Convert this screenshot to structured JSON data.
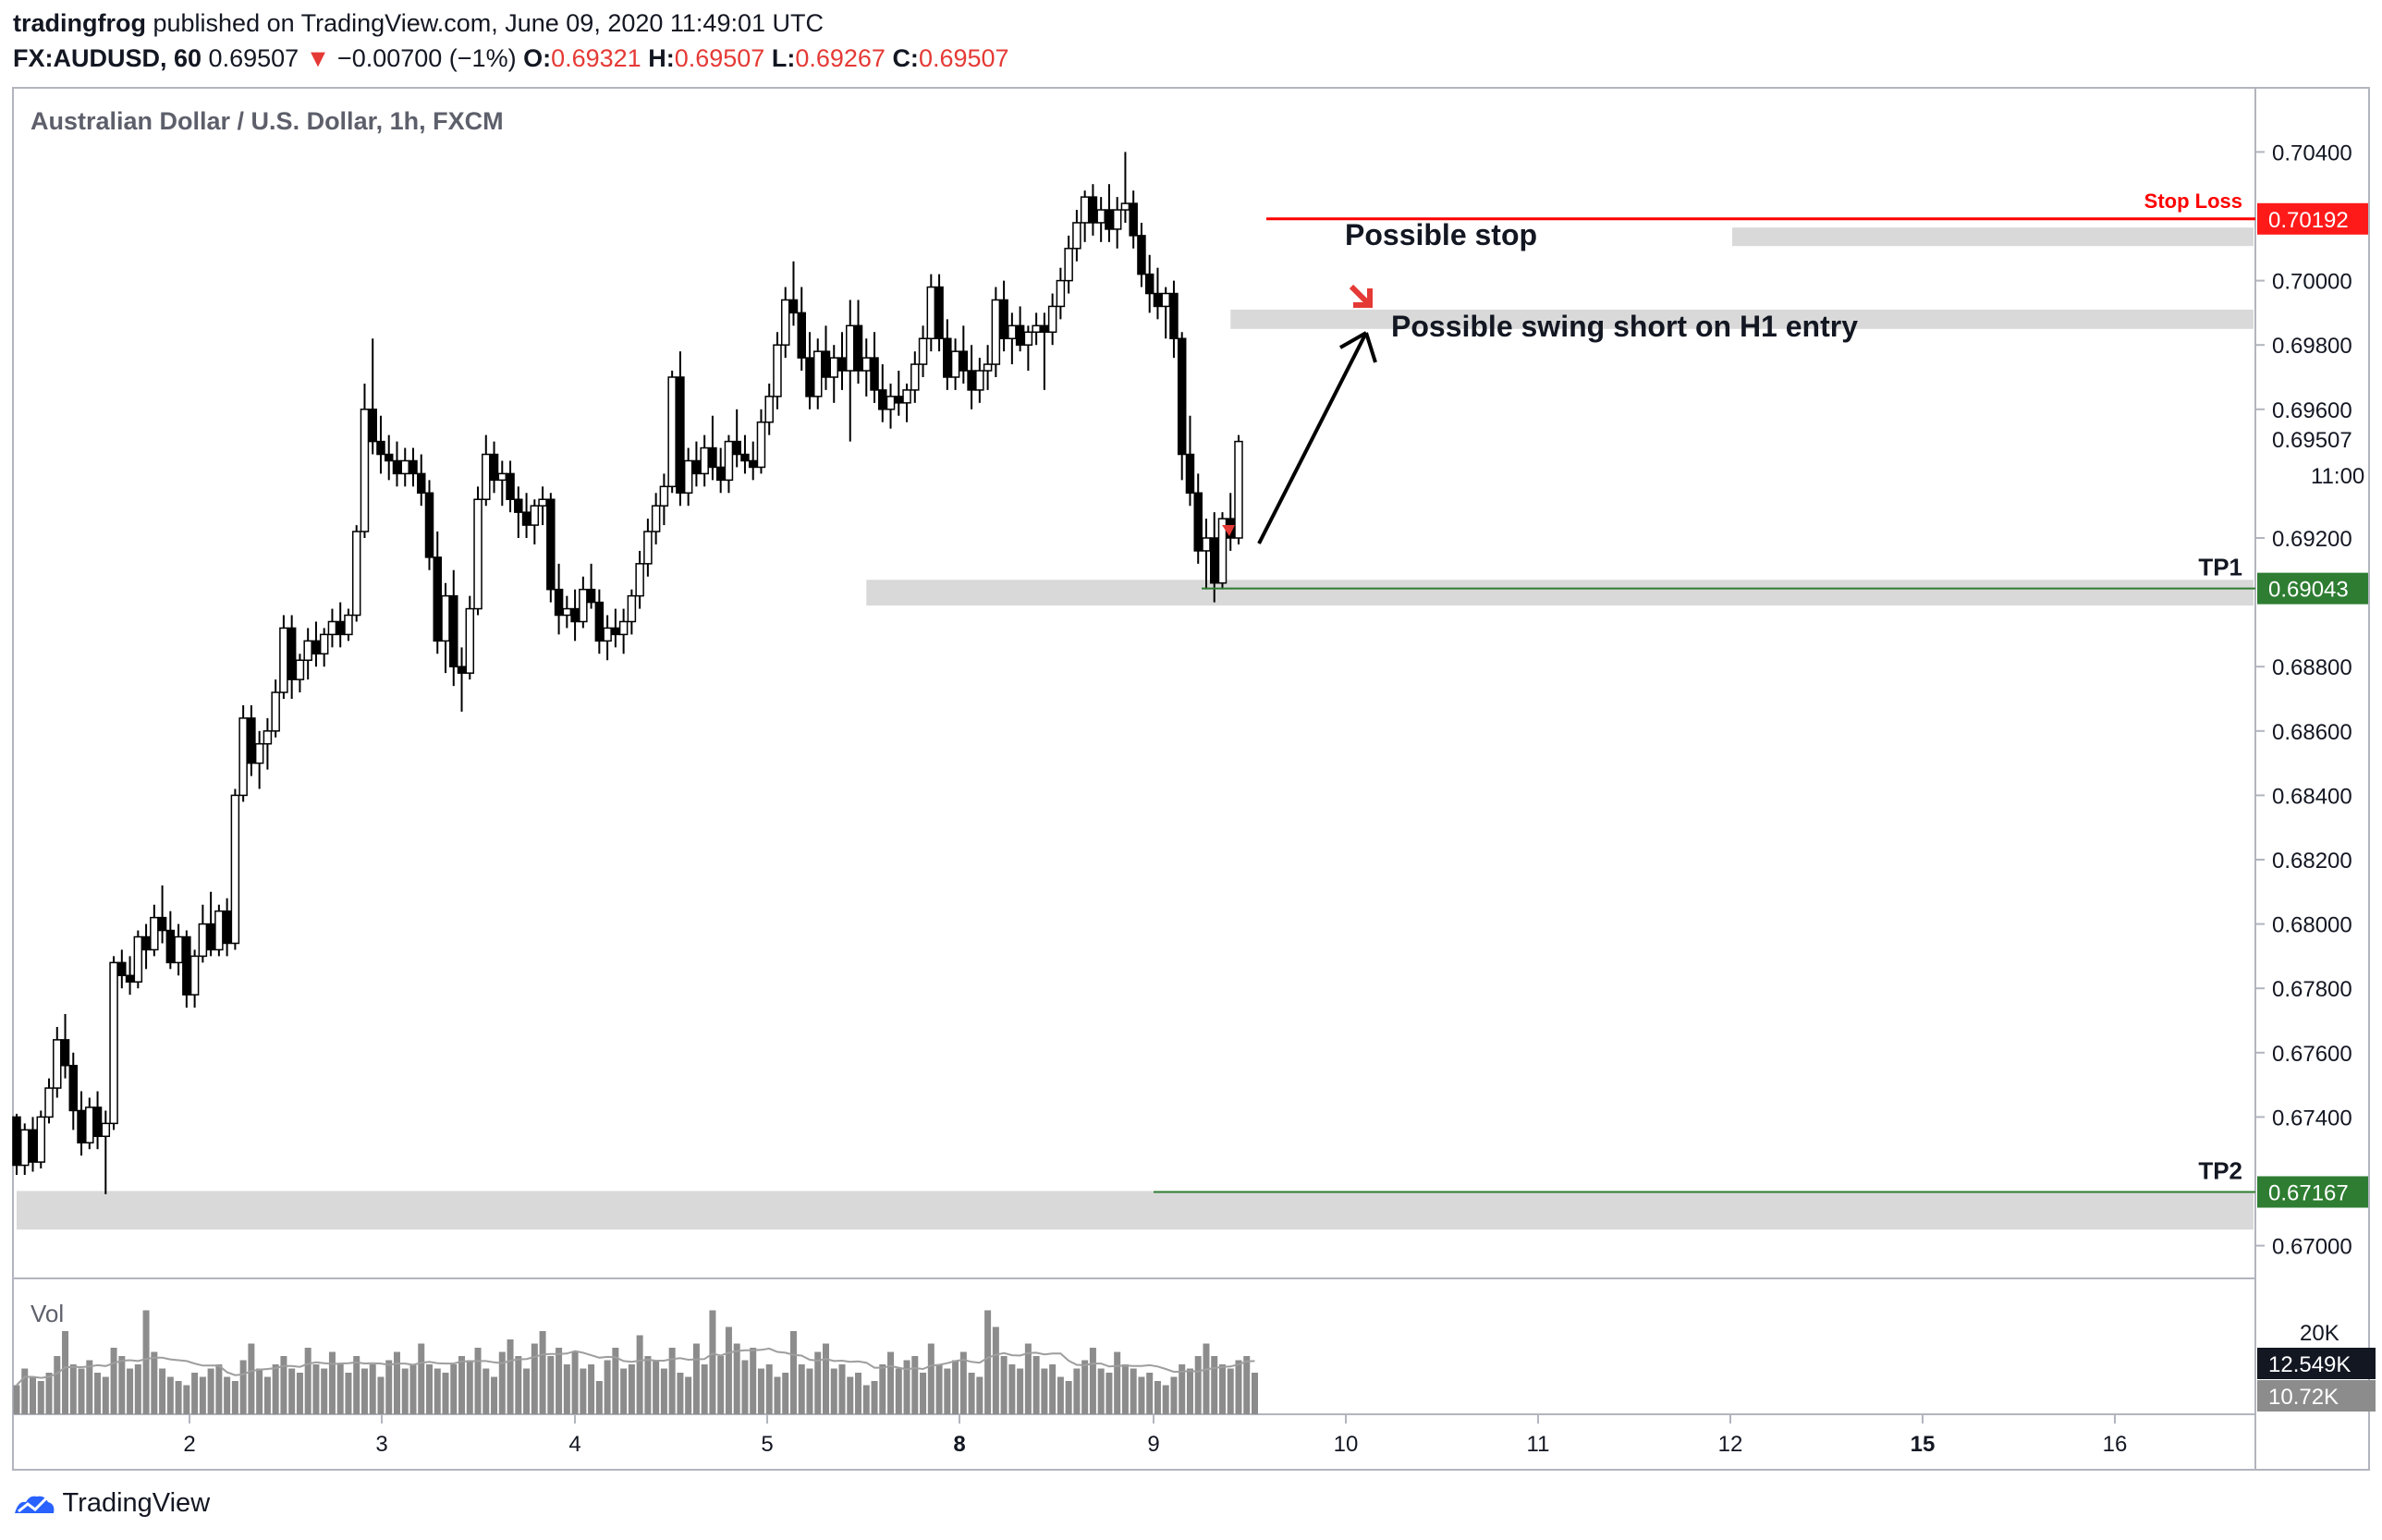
{
  "header": {
    "author": "tradingfrog",
    "published_text": "published on TradingView.com, June 09, 2020 11:49:01 UTC",
    "symbol_interval": "FX:AUDUSD, 60",
    "last_price": "0.69507",
    "change_arrow": "▼",
    "change": "−0.00700 (−1%)",
    "o_label": "O:",
    "o_value": "0.69321",
    "h_label": "H:",
    "h_value": "0.69507",
    "l_label": "L:",
    "l_value": "0.69267",
    "c_label": "C:",
    "c_value": "0.69507"
  },
  "footer": {
    "brand": "TradingView"
  },
  "colors": {
    "up_candle": "#ffffff",
    "down_candle": "#000000",
    "candle_outline": "#000000",
    "zone": "#d9d9d9",
    "stop_line": "#ff0000",
    "tp_line": "#2e7d32",
    "tp_badge": "#2e7d32",
    "stop_badge": "#ff1a1a",
    "volume_bar": "#8c8c8c",
    "price_badge": "#131722",
    "volume_badge": "#8c8c8c",
    "grid_border": "#b2b5be"
  },
  "chart_data": {
    "type": "candlestick",
    "title": "Australian Dollar / U.S. Dollar, 1h, FXCM",
    "volume_label": "Vol",
    "y_range": [
      0.6695,
      0.7045
    ],
    "y_ticks": [
      "0.70400",
      "0.70000",
      "0.69800",
      "0.69600",
      "0.69200",
      "0.68800",
      "0.68600",
      "0.68400",
      "0.68200",
      "0.68000",
      "0.67800",
      "0.67600",
      "0.67400",
      "0.67000"
    ],
    "x_ticks": [
      "2",
      "3",
      "4",
      "5",
      "8",
      "9",
      "10",
      "11",
      "12",
      "15",
      "16"
    ],
    "current_price_label": "0.69507",
    "countdown_label": "11:00",
    "volume_axis_label": "20K",
    "volume_current_label": "12.549K",
    "volume_ma_label": "10.72K",
    "candles": [
      [
        0.674,
        0.6741,
        0.6722,
        0.6725
      ],
      [
        0.6725,
        0.6738,
        0.6722,
        0.6736
      ],
      [
        0.6736,
        0.674,
        0.6723,
        0.6726
      ],
      [
        0.6726,
        0.6742,
        0.6724,
        0.674
      ],
      [
        0.674,
        0.6752,
        0.6738,
        0.6749
      ],
      [
        0.6749,
        0.6768,
        0.6746,
        0.6764
      ],
      [
        0.6764,
        0.6772,
        0.6752,
        0.6756
      ],
      [
        0.6756,
        0.676,
        0.6736,
        0.6742
      ],
      [
        0.6742,
        0.6748,
        0.6728,
        0.6732
      ],
      [
        0.6732,
        0.6746,
        0.673,
        0.6743
      ],
      [
        0.6743,
        0.6748,
        0.673,
        0.6734
      ],
      [
        0.6734,
        0.6742,
        0.6716,
        0.6738
      ],
      [
        0.6738,
        0.679,
        0.6736,
        0.6788
      ],
      [
        0.6788,
        0.6792,
        0.678,
        0.6784
      ],
      [
        0.6784,
        0.679,
        0.6778,
        0.6782
      ],
      [
        0.6782,
        0.6798,
        0.678,
        0.6796
      ],
      [
        0.6796,
        0.68,
        0.6786,
        0.6792
      ],
      [
        0.6792,
        0.6806,
        0.679,
        0.6802
      ],
      [
        0.6802,
        0.6812,
        0.6794,
        0.6798
      ],
      [
        0.6798,
        0.6804,
        0.6786,
        0.6788
      ],
      [
        0.6788,
        0.68,
        0.6784,
        0.6796
      ],
      [
        0.6796,
        0.6798,
        0.6774,
        0.6778
      ],
      [
        0.6778,
        0.6792,
        0.6774,
        0.679
      ],
      [
        0.679,
        0.6806,
        0.6788,
        0.68
      ],
      [
        0.68,
        0.681,
        0.679,
        0.6792
      ],
      [
        0.6792,
        0.6806,
        0.679,
        0.6804
      ],
      [
        0.6804,
        0.6808,
        0.679,
        0.6794
      ],
      [
        0.6794,
        0.6842,
        0.6792,
        0.684
      ],
      [
        0.684,
        0.6868,
        0.6838,
        0.6864
      ],
      [
        0.6864,
        0.6868,
        0.6846,
        0.685
      ],
      [
        0.685,
        0.686,
        0.6842,
        0.6856
      ],
      [
        0.6856,
        0.6864,
        0.6848,
        0.686
      ],
      [
        0.686,
        0.6876,
        0.6858,
        0.6872
      ],
      [
        0.6872,
        0.6896,
        0.687,
        0.6892
      ],
      [
        0.6892,
        0.6896,
        0.687,
        0.6876
      ],
      [
        0.6876,
        0.6884,
        0.6872,
        0.6882
      ],
      [
        0.6882,
        0.6892,
        0.6876,
        0.6888
      ],
      [
        0.6888,
        0.6894,
        0.688,
        0.6884
      ],
      [
        0.6884,
        0.6892,
        0.688,
        0.689
      ],
      [
        0.689,
        0.6898,
        0.6886,
        0.6894
      ],
      [
        0.6894,
        0.69,
        0.6886,
        0.689
      ],
      [
        0.689,
        0.6898,
        0.6888,
        0.6896
      ],
      [
        0.6896,
        0.6924,
        0.6894,
        0.6922
      ],
      [
        0.6922,
        0.6968,
        0.692,
        0.696
      ],
      [
        0.696,
        0.6982,
        0.6946,
        0.695
      ],
      [
        0.695,
        0.6958,
        0.694,
        0.6946
      ],
      [
        0.6946,
        0.6952,
        0.6938,
        0.6944
      ],
      [
        0.6944,
        0.695,
        0.6936,
        0.694
      ],
      [
        0.694,
        0.6948,
        0.6936,
        0.6944
      ],
      [
        0.6944,
        0.6948,
        0.6936,
        0.694
      ],
      [
        0.694,
        0.6946,
        0.693,
        0.6934
      ],
      [
        0.6934,
        0.6938,
        0.691,
        0.6914
      ],
      [
        0.6914,
        0.6922,
        0.6884,
        0.6888
      ],
      [
        0.6888,
        0.6906,
        0.6878,
        0.6902
      ],
      [
        0.6902,
        0.691,
        0.6874,
        0.688
      ],
      [
        0.688,
        0.6886,
        0.6866,
        0.6878
      ],
      [
        0.6878,
        0.6902,
        0.6876,
        0.6898
      ],
      [
        0.6898,
        0.6936,
        0.6896,
        0.6932
      ],
      [
        0.6932,
        0.6952,
        0.693,
        0.6946
      ],
      [
        0.6946,
        0.695,
        0.6934,
        0.6938
      ],
      [
        0.6938,
        0.6944,
        0.693,
        0.694
      ],
      [
        0.694,
        0.6944,
        0.6928,
        0.6932
      ],
      [
        0.6932,
        0.6936,
        0.692,
        0.6928
      ],
      [
        0.6928,
        0.6934,
        0.692,
        0.6924
      ],
      [
        0.6924,
        0.6932,
        0.6918,
        0.693
      ],
      [
        0.693,
        0.6936,
        0.6924,
        0.6932
      ],
      [
        0.6932,
        0.6934,
        0.69,
        0.6904
      ],
      [
        0.6904,
        0.6912,
        0.689,
        0.6896
      ],
      [
        0.6896,
        0.6902,
        0.6892,
        0.6898
      ],
      [
        0.6898,
        0.6904,
        0.6888,
        0.6894
      ],
      [
        0.6894,
        0.6908,
        0.6892,
        0.6904
      ],
      [
        0.6904,
        0.6912,
        0.6898,
        0.69
      ],
      [
        0.69,
        0.6904,
        0.6884,
        0.6888
      ],
      [
        0.6888,
        0.6896,
        0.6882,
        0.6892
      ],
      [
        0.6892,
        0.6898,
        0.6886,
        0.689
      ],
      [
        0.689,
        0.6898,
        0.6884,
        0.6894
      ],
      [
        0.6894,
        0.6904,
        0.689,
        0.6902
      ],
      [
        0.6902,
        0.6916,
        0.6898,
        0.6912
      ],
      [
        0.6912,
        0.6926,
        0.6908,
        0.6922
      ],
      [
        0.6922,
        0.6934,
        0.6918,
        0.693
      ],
      [
        0.693,
        0.694,
        0.6924,
        0.6936
      ],
      [
        0.6936,
        0.6972,
        0.6934,
        0.697
      ],
      [
        0.697,
        0.6978,
        0.693,
        0.6934
      ],
      [
        0.6934,
        0.6948,
        0.693,
        0.6944
      ],
      [
        0.6944,
        0.695,
        0.6936,
        0.694
      ],
      [
        0.694,
        0.6952,
        0.6936,
        0.6948
      ],
      [
        0.6948,
        0.6958,
        0.6938,
        0.6942
      ],
      [
        0.6942,
        0.6948,
        0.6934,
        0.6938
      ],
      [
        0.6938,
        0.6952,
        0.6934,
        0.695
      ],
      [
        0.695,
        0.696,
        0.6942,
        0.6946
      ],
      [
        0.6946,
        0.6952,
        0.694,
        0.6944
      ],
      [
        0.6944,
        0.695,
        0.6938,
        0.6942
      ],
      [
        0.6942,
        0.696,
        0.694,
        0.6956
      ],
      [
        0.6956,
        0.6968,
        0.6952,
        0.6964
      ],
      [
        0.6964,
        0.6984,
        0.696,
        0.698
      ],
      [
        0.698,
        0.6998,
        0.6976,
        0.6994
      ],
      [
        0.6994,
        0.7006,
        0.6986,
        0.699
      ],
      [
        0.699,
        0.6998,
        0.6972,
        0.6976
      ],
      [
        0.6976,
        0.6984,
        0.696,
        0.6964
      ],
      [
        0.6964,
        0.6982,
        0.696,
        0.6978
      ],
      [
        0.6978,
        0.6986,
        0.6966,
        0.697
      ],
      [
        0.697,
        0.698,
        0.6962,
        0.6976
      ],
      [
        0.6976,
        0.6984,
        0.6966,
        0.6972
      ],
      [
        0.6972,
        0.6994,
        0.695,
        0.6986
      ],
      [
        0.6986,
        0.6994,
        0.6968,
        0.6972
      ],
      [
        0.6972,
        0.6982,
        0.6964,
        0.6976
      ],
      [
        0.6976,
        0.6984,
        0.6962,
        0.6966
      ],
      [
        0.6966,
        0.6974,
        0.6956,
        0.696
      ],
      [
        0.696,
        0.6968,
        0.6954,
        0.6964
      ],
      [
        0.6964,
        0.6972,
        0.6958,
        0.6962
      ],
      [
        0.6962,
        0.6968,
        0.6956,
        0.6966
      ],
      [
        0.6966,
        0.6978,
        0.6962,
        0.6974
      ],
      [
        0.6974,
        0.6986,
        0.697,
        0.6982
      ],
      [
        0.6982,
        0.7002,
        0.6978,
        0.6998
      ],
      [
        0.6998,
        0.7002,
        0.6978,
        0.6982
      ],
      [
        0.6982,
        0.6988,
        0.6966,
        0.697
      ],
      [
        0.697,
        0.6982,
        0.6966,
        0.6978
      ],
      [
        0.6978,
        0.6986,
        0.6968,
        0.6972
      ],
      [
        0.6972,
        0.698,
        0.696,
        0.6966
      ],
      [
        0.6966,
        0.6976,
        0.6962,
        0.6972
      ],
      [
        0.6972,
        0.698,
        0.6966,
        0.6974
      ],
      [
        0.6974,
        0.6998,
        0.697,
        0.6994
      ],
      [
        0.6994,
        0.7,
        0.6978,
        0.6982
      ],
      [
        0.6982,
        0.699,
        0.6974,
        0.6986
      ],
      [
        0.6986,
        0.6992,
        0.6978,
        0.698
      ],
      [
        0.698,
        0.6986,
        0.6972,
        0.6984
      ],
      [
        0.6984,
        0.699,
        0.698,
        0.6986
      ],
      [
        0.6986,
        0.699,
        0.6966,
        0.6984
      ],
      [
        0.6984,
        0.6996,
        0.698,
        0.6992
      ],
      [
        0.6992,
        0.7004,
        0.6988,
        0.7
      ],
      [
        0.7,
        0.7014,
        0.6996,
        0.701
      ],
      [
        0.701,
        0.7022,
        0.7006,
        0.7018
      ],
      [
        0.7018,
        0.7028,
        0.7012,
        0.7026
      ],
      [
        0.7026,
        0.703,
        0.7014,
        0.7018
      ],
      [
        0.7018,
        0.7026,
        0.7012,
        0.7022
      ],
      [
        0.7022,
        0.703,
        0.7012,
        0.7016
      ],
      [
        0.7016,
        0.7026,
        0.701,
        0.7022
      ],
      [
        0.7022,
        0.704,
        0.7018,
        0.7024
      ],
      [
        0.7024,
        0.7028,
        0.701,
        0.7014
      ],
      [
        0.7014,
        0.7018,
        0.6998,
        0.7002
      ],
      [
        0.7002,
        0.7008,
        0.699,
        0.6996
      ],
      [
        0.6996,
        0.7004,
        0.6988,
        0.6992
      ],
      [
        0.6992,
        0.6998,
        0.6982,
        0.6996
      ],
      [
        0.6996,
        0.7,
        0.6976,
        0.6982
      ],
      [
        0.6982,
        0.6984,
        0.6938,
        0.6946
      ],
      [
        0.6946,
        0.6958,
        0.693,
        0.6934
      ],
      [
        0.6934,
        0.694,
        0.6912,
        0.6916
      ],
      [
        0.6916,
        0.6926,
        0.6904,
        0.692
      ],
      [
        0.692,
        0.6928,
        0.69,
        0.6906
      ],
      [
        0.6906,
        0.6928,
        0.6904,
        0.6926
      ],
      [
        0.6926,
        0.6934,
        0.6916,
        0.692
      ],
      [
        0.692,
        0.6952,
        0.6918,
        0.695
      ]
    ],
    "volumes": [
      0.35,
      0.55,
      0.45,
      0.4,
      0.5,
      0.7,
      1.0,
      0.6,
      0.55,
      0.65,
      0.5,
      0.45,
      0.8,
      0.7,
      0.55,
      0.6,
      1.25,
      0.75,
      0.55,
      0.45,
      0.4,
      0.35,
      0.5,
      0.45,
      0.55,
      0.6,
      0.45,
      0.4,
      0.65,
      0.85,
      0.55,
      0.45,
      0.6,
      0.7,
      0.55,
      0.5,
      0.8,
      0.6,
      0.55,
      0.75,
      0.6,
      0.5,
      0.7,
      0.55,
      0.6,
      0.45,
      0.65,
      0.75,
      0.55,
      0.6,
      0.85,
      0.6,
      0.55,
      0.5,
      0.6,
      0.7,
      0.65,
      0.8,
      0.55,
      0.45,
      0.75,
      0.9,
      0.7,
      0.55,
      0.85,
      1.0,
      0.7,
      0.8,
      0.6,
      0.75,
      0.55,
      0.6,
      0.4,
      0.65,
      0.8,
      0.55,
      0.6,
      0.95,
      0.7,
      0.65,
      0.55,
      0.8,
      0.5,
      0.45,
      0.85,
      0.6,
      1.25,
      0.7,
      1.05,
      0.85,
      0.65,
      0.8,
      0.55,
      0.6,
      0.45,
      0.5,
      1.0,
      0.6,
      0.55,
      0.75,
      0.85,
      0.55,
      0.6,
      0.45,
      0.5,
      0.35,
      0.4,
      0.6,
      0.75,
      0.55,
      0.65,
      0.7,
      0.5,
      0.85,
      0.6,
      0.55,
      0.65,
      0.75,
      0.5,
      0.45,
      1.25,
      1.05,
      0.7,
      0.6,
      0.55,
      0.85,
      0.7,
      0.55,
      0.6,
      0.45,
      0.4,
      0.55,
      0.65,
      0.8,
      0.55,
      0.5,
      0.75,
      0.6,
      0.55,
      0.45,
      0.5,
      0.4,
      0.35,
      0.45,
      0.6,
      0.55,
      0.7,
      0.85,
      0.7,
      0.6,
      0.55,
      0.65,
      0.7,
      0.5
    ],
    "zones": [
      {
        "from": 0.70135,
        "to": 0.70165,
        "start": 212,
        "end": 402
      },
      {
        "from": 0.6985,
        "to": 0.6991,
        "start": 150,
        "end": 414
      },
      {
        "from": 0.6899,
        "to": 0.6907,
        "start": 105,
        "end": 510
      },
      {
        "from": 0.6705,
        "to": 0.6717,
        "start": 0,
        "end": 900
      }
    ],
    "levels": [
      {
        "label": "Stop Loss",
        "price": 0.70192,
        "badge": "0.70192",
        "kind": "stop"
      },
      {
        "label": "TP1",
        "price": 0.69043,
        "badge": "0.69043",
        "kind": "tp"
      },
      {
        "label": "TP2",
        "price": 0.67167,
        "badge": "0.67167",
        "kind": "tp"
      }
    ],
    "annotations": {
      "stop_text": "Possible stop",
      "entry_text": "Possible swing short on H1 entry"
    }
  }
}
